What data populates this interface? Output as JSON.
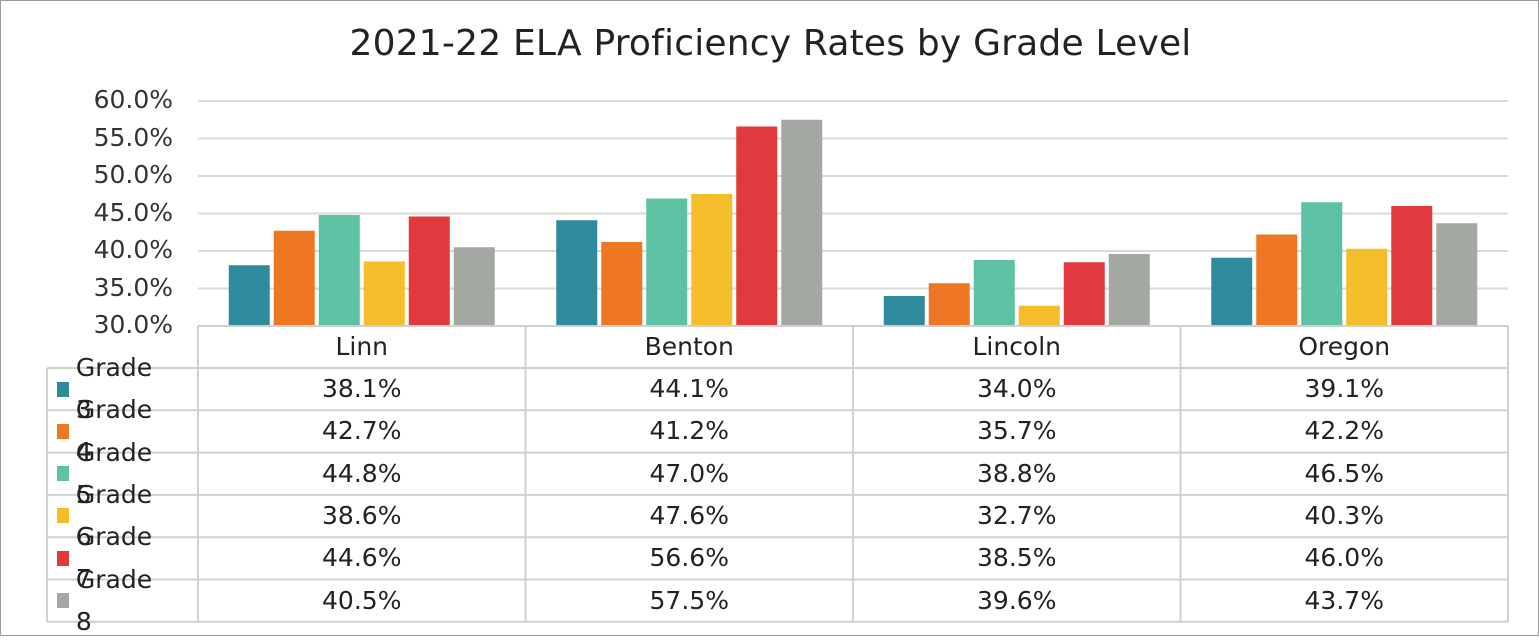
{
  "chart_data": {
    "type": "bar",
    "title": "2021-22 ELA Proficiency Rates by Grade Level",
    "categories": [
      "Linn",
      "Benton",
      "Lincoln",
      "Oregon"
    ],
    "ylim": [
      30,
      60
    ],
    "yticks": [
      "60.0%",
      "55.0%",
      "50.0%",
      "45.0%",
      "40.0%",
      "35.0%",
      "30.0%"
    ],
    "ytick_values": [
      60,
      55,
      50,
      45,
      40,
      35,
      30
    ],
    "grid": true,
    "legend": "data-table",
    "series": [
      {
        "name": "Grade 3",
        "color": "#2e8b9e",
        "values": [
          38.1,
          44.1,
          34.0,
          39.1
        ],
        "labels": [
          "38.1%",
          "44.1%",
          "34.0%",
          "39.1%"
        ]
      },
      {
        "name": "Grade 4",
        "color": "#ef7622",
        "values": [
          42.7,
          41.2,
          35.7,
          42.2
        ],
        "labels": [
          "42.7%",
          "41.2%",
          "35.7%",
          "42.2%"
        ]
      },
      {
        "name": "Grade 5",
        "color": "#5cc2a3",
        "values": [
          44.8,
          47.0,
          38.8,
          46.5
        ],
        "labels": [
          "44.8%",
          "47.0%",
          "38.8%",
          "46.5%"
        ]
      },
      {
        "name": "Grade 6",
        "color": "#f4bd2a",
        "values": [
          38.6,
          47.6,
          32.7,
          40.3
        ],
        "labels": [
          "38.6%",
          "47.6%",
          "32.7%",
          "40.3%"
        ]
      },
      {
        "name": "Grade 7",
        "color": "#e03a3e",
        "values": [
          44.6,
          56.6,
          38.5,
          46.0
        ],
        "labels": [
          "44.6%",
          "56.6%",
          "38.5%",
          "46.0%"
        ]
      },
      {
        "name": "Grade 8",
        "color": "#a3a8a2",
        "values": [
          40.5,
          57.5,
          39.6,
          43.7
        ],
        "labels": [
          "40.5%",
          "57.5%",
          "39.6%",
          "43.7%"
        ]
      }
    ]
  }
}
